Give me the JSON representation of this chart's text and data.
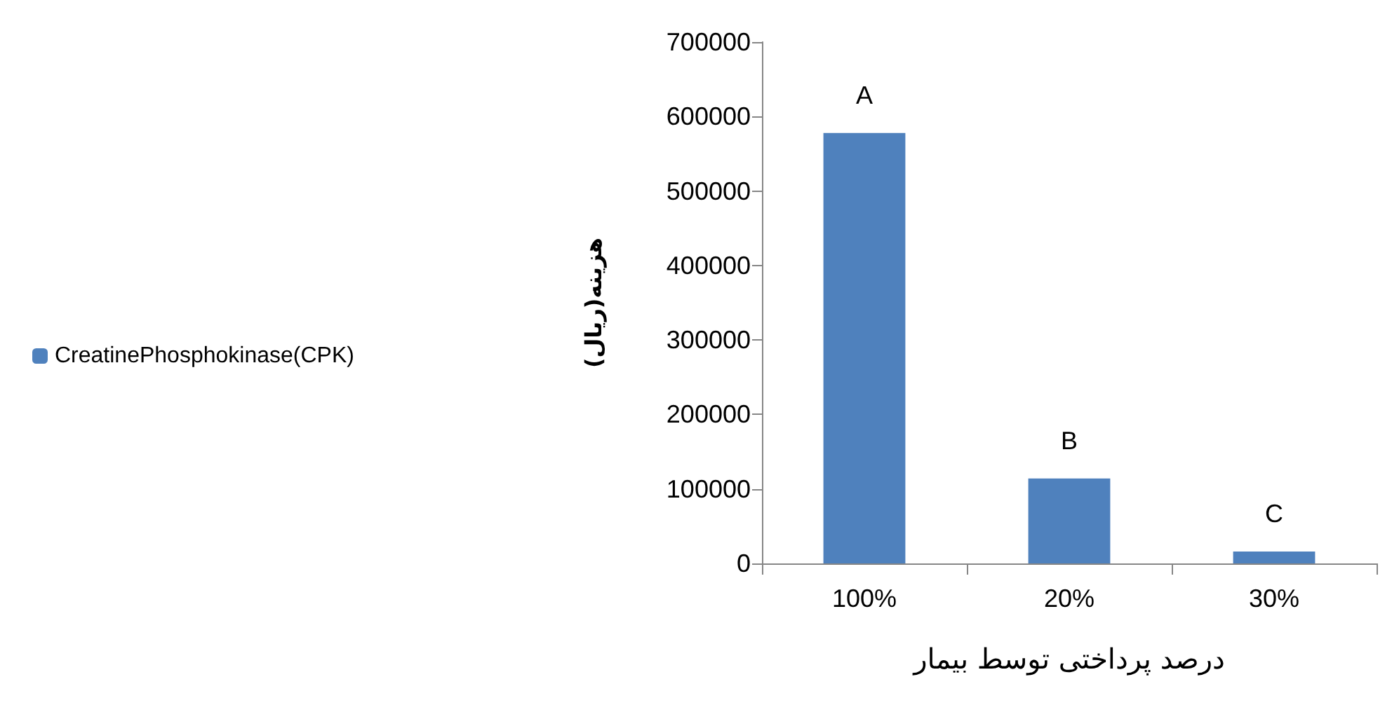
{
  "chart_data": {
    "type": "bar",
    "xlabel": "درصد پرداختی توسط بیمار",
    "ylabel": "هزینه(ریال)",
    "categories": [
      "100%",
      "20%",
      "30%"
    ],
    "series": [
      {
        "name": "CreatinePhosphokinase(CPK)",
        "color": "#4f81bd",
        "values": [
          578000,
          114000,
          16000
        ]
      }
    ],
    "ylim": [
      0,
      700000
    ],
    "yticks": [
      0,
      100000,
      200000,
      300000,
      400000,
      500000,
      600000,
      700000
    ],
    "annotations": [
      {
        "text": "A",
        "x": "100%",
        "y": 578000
      },
      {
        "text": "B",
        "x": "20%",
        "y": 114000
      },
      {
        "text": "C",
        "x": "30%",
        "y": 16000
      }
    ],
    "grid": false,
    "legend": "left"
  }
}
